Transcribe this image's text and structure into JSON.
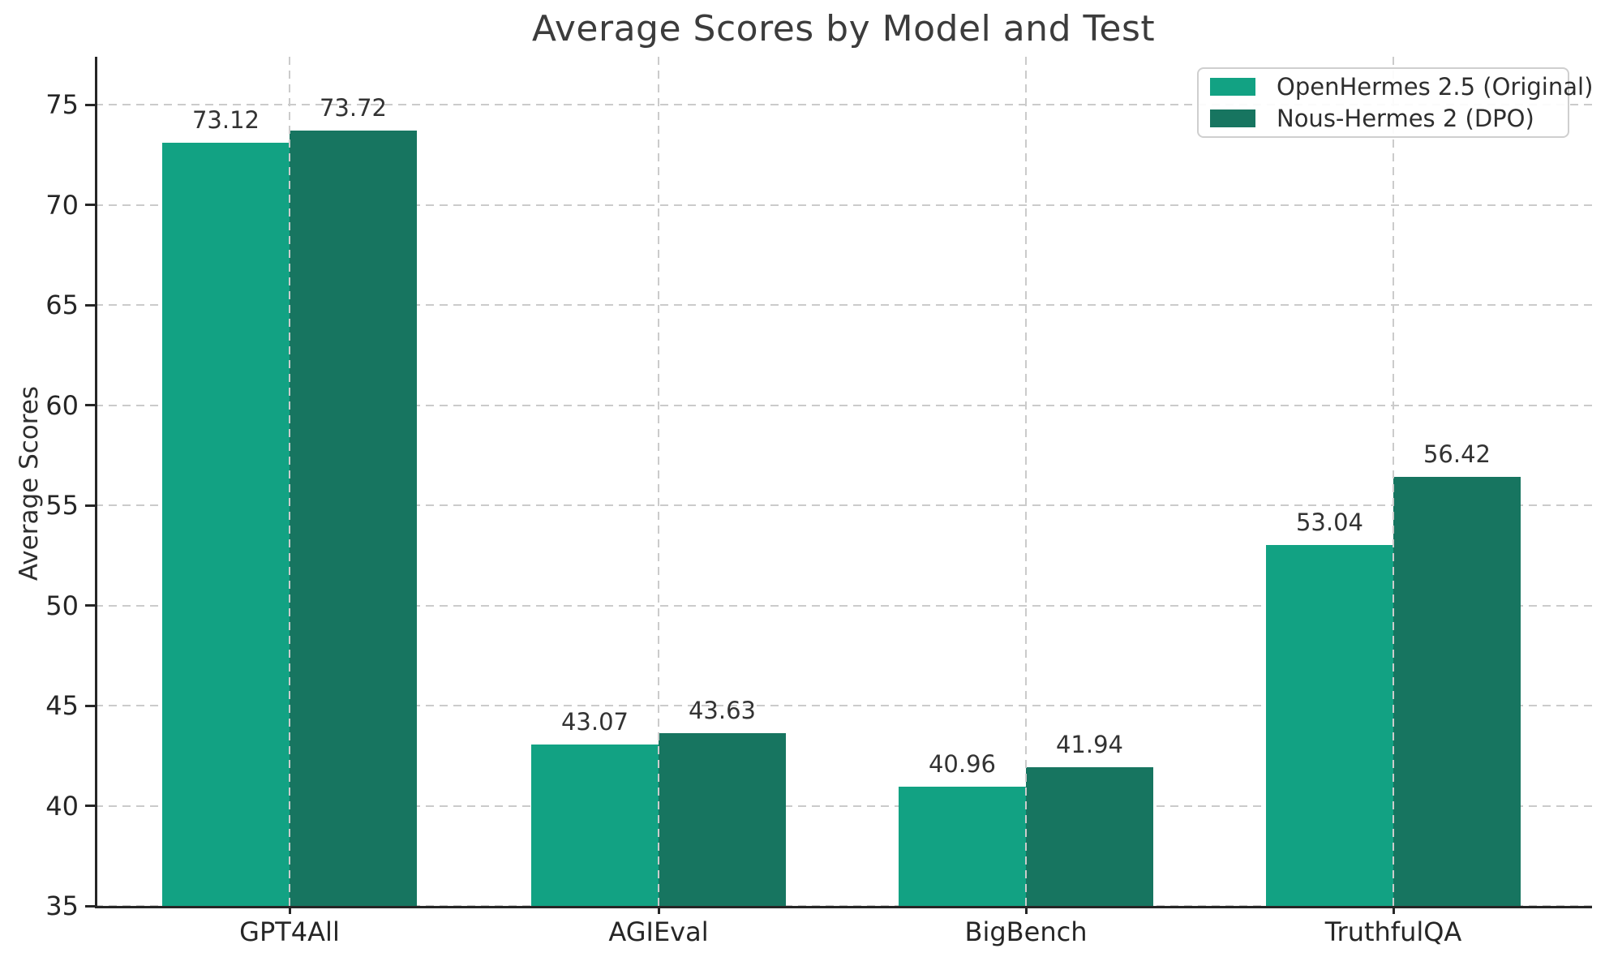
{
  "figure_title": "Average Scores by Model and Test",
  "chart_data": {
    "type": "bar",
    "title": "Average Scores by Model and Test",
    "xlabel": "",
    "ylabel": "Average Scores",
    "categories": [
      "GPT4All",
      "AGIEval",
      "BigBench",
      "TruthfulQA"
    ],
    "series": [
      {
        "name": "OpenHermes 2.5 (Original)",
        "color": "#12a283",
        "values": [
          73.12,
          43.07,
          40.96,
          53.04
        ]
      },
      {
        "name": "Nous-Hermes 2 (DPO)",
        "color": "#177560",
        "values": [
          73.72,
          43.63,
          41.94,
          56.42
        ]
      }
    ],
    "bar_value_labels": [
      "73.12",
      "73.72",
      "43.07",
      "43.63",
      "40.96",
      "41.94",
      "53.04",
      "56.42"
    ],
    "yticks": [
      35,
      40,
      45,
      50,
      55,
      60,
      65,
      70,
      75
    ],
    "ylim": [
      35,
      77.4
    ],
    "grid": true,
    "grid_style": "dashed",
    "grid_color": "#cbcbcb",
    "axis_color": "#262626",
    "legend_position": "upper right"
  }
}
